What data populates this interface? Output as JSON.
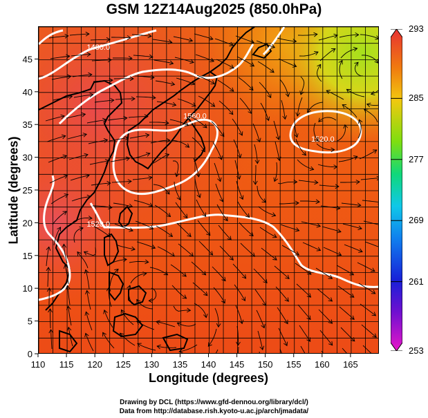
{
  "title": "GSM 12Z14Aug2025 (850.0hPa)",
  "xlabel": "Longitude (degrees)",
  "ylabel": "Latitude (degrees)",
  "credit_line1": "Drawing by DCL (https://www.gfd-dennou.org/library/dcl/)",
  "credit_line2": "Data from http://database.rish.kyoto-u.ac.jp/arch/jmadata/",
  "colors": {
    "background_field": "#ee3e12",
    "coast": "#000000",
    "contour": "#ffffff",
    "streamline": "#000000"
  },
  "chart_data": {
    "type": "heatmap",
    "x_ticks": [
      "110",
      "115",
      "120",
      "125",
      "130",
      "135",
      "140",
      "145",
      "150",
      "155",
      "160",
      "165"
    ],
    "y_ticks": [
      "0",
      "5",
      "10",
      "15",
      "20",
      "25",
      "30",
      "35",
      "40",
      "45"
    ],
    "xlim": [
      110,
      170
    ],
    "ylim": [
      0,
      50
    ],
    "grid": true,
    "colorbar": {
      "ticks": [
        "293",
        "285",
        "277",
        "269",
        "261",
        "253"
      ],
      "min": 253,
      "max": 293,
      "position": "right"
    },
    "contour_labels": [
      {
        "text": "1480.0",
        "lon": 120.5,
        "lat": 46.5
      },
      {
        "text": "1560.0",
        "lon": 137.5,
        "lat": 36.0
      },
      {
        "text": "1520.0",
        "lon": 120.5,
        "lat": 19.5
      },
      {
        "text": "1520.0",
        "lon": 160.0,
        "lat": 32.5
      }
    ]
  }
}
